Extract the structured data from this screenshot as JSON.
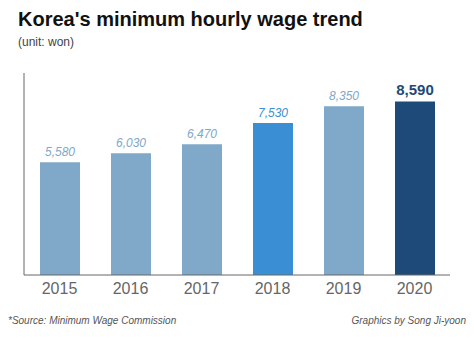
{
  "chart_data": {
    "type": "bar",
    "title": "Korea's minimum hourly wage trend",
    "subtitle": "(unit: won)",
    "categories": [
      "2015",
      "2016",
      "2017",
      "2018",
      "2019",
      "2020"
    ],
    "values": [
      5580,
      6030,
      6470,
      7530,
      8350,
      8590
    ],
    "value_labels": [
      "5,580",
      "6,030",
      "6,470",
      "7,530",
      "8,350",
      "8,590"
    ],
    "colors": [
      "#7fa8c9",
      "#7fa8c9",
      "#7fa8c9",
      "#3a8fd4",
      "#7fa8c9",
      "#1e4a7a"
    ],
    "ylim": [
      0,
      10000
    ],
    "data_labels": true,
    "tick_labels": "x",
    "grid": false,
    "annotations": [
      "*Source: Minimum Wage Commission",
      "Graphics by Song Ji-yoon"
    ]
  }
}
